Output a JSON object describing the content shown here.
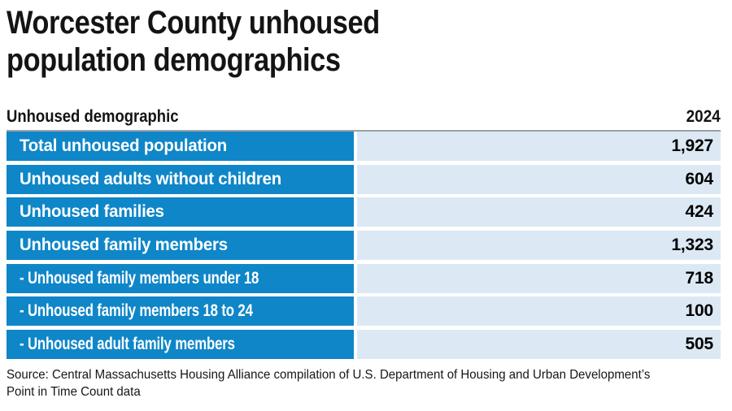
{
  "header": {
    "title": "Worcester County unhoused population demographics",
    "title_lines": [
      "Worcester County unhoused",
      "population demographics"
    ]
  },
  "table": {
    "header": {
      "demographic_label": "Unhoused demographic",
      "year_label": "2024"
    },
    "rows": [
      {
        "label": "Total unhoused population",
        "value": "1,927",
        "indent": false
      },
      {
        "label": "Unhoused adults without children",
        "value": "604",
        "indent": false
      },
      {
        "label": "Unhoused families",
        "value": "424",
        "indent": false
      },
      {
        "label": "Unhoused family members",
        "value": "1,323",
        "indent": false
      },
      {
        "label": "- Unhoused family members under 18",
        "value": "718",
        "indent": true
      },
      {
        "label": "- Unhoused family members 18 to 24",
        "value": "100",
        "indent": true
      },
      {
        "label": "- Unhoused adult family members",
        "value": "505",
        "indent": true
      }
    ]
  },
  "source": {
    "line1": "Source: Central Massachusetts Housing Alliance compilation of U.S. Department of Housing and Urban Development’s",
    "line2": "Point in Time Count data"
  },
  "colors": {
    "row_label_bg": "#0f86c8",
    "row_value_bg": "#dce9f4",
    "rule": "#9aa0a5",
    "label_text": "#ffffff",
    "value_text": "#000000"
  },
  "chart_data": {
    "type": "table",
    "title": "Worcester County unhoused population demographics",
    "columns": [
      "Unhoused demographic",
      "2024"
    ],
    "rows": [
      [
        "Total unhoused population",
        1927
      ],
      [
        "Unhoused adults without children",
        604
      ],
      [
        "Unhoused families",
        424
      ],
      [
        "Unhoused family members",
        1323
      ],
      [
        "- Unhoused family members under 18",
        718
      ],
      [
        "- Unhoused family members 18 to 24",
        100
      ],
      [
        "- Unhoused adult family members",
        505
      ]
    ],
    "source": "Source: Central Massachusetts Housing Alliance compilation of U.S. Department of Housing and Urban Development’s Point in Time Count data"
  }
}
